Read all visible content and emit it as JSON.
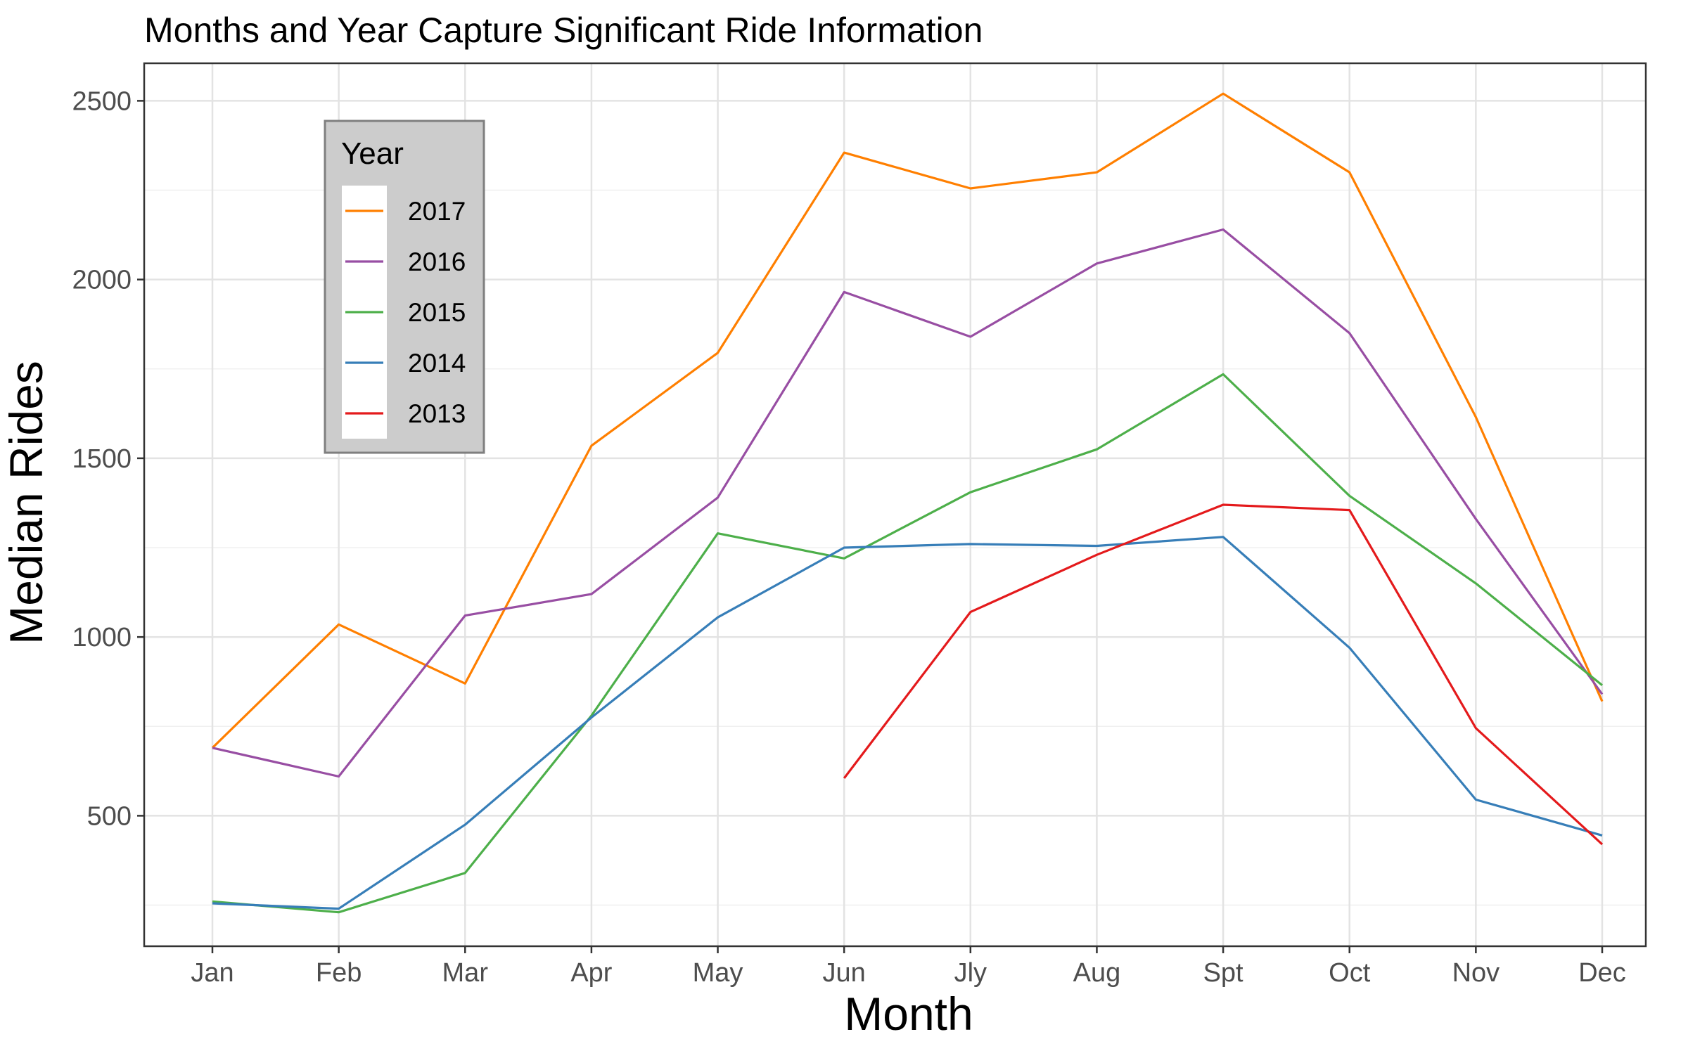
{
  "chart_data": {
    "type": "line",
    "title": "Months and Year Capture Significant Ride Information",
    "xlabel": "Month",
    "ylabel": "Median Rides",
    "categories": [
      "Jan",
      "Feb",
      "Mar",
      "Apr",
      "May",
      "Jun",
      "Jly",
      "Aug",
      "Spt",
      "Oct",
      "Nov",
      "Dec"
    ],
    "ylim": [
      135,
      2605
    ],
    "yticks": [
      500,
      1000,
      1500,
      2000,
      2500
    ],
    "grid": true,
    "legend": {
      "title": "Year",
      "placement": "top-left"
    },
    "series": [
      {
        "name": "2017",
        "color": "#FF7F00",
        "values": [
          690,
          1035,
          870,
          1535,
          1795,
          2355,
          2255,
          2300,
          2520,
          2300,
          1615,
          820
        ]
      },
      {
        "name": "2016",
        "color": "#984EA3",
        "values": [
          690,
          610,
          1060,
          1120,
          1390,
          1965,
          1840,
          2045,
          2140,
          1850,
          1330,
          840
        ]
      },
      {
        "name": "2015",
        "color": "#4DAF4A",
        "values": [
          260,
          230,
          340,
          780,
          1290,
          1220,
          1405,
          1525,
          1735,
          1395,
          1150,
          865
        ]
      },
      {
        "name": "2014",
        "color": "#377EB8",
        "values": [
          255,
          240,
          475,
          775,
          1055,
          1250,
          1260,
          1255,
          1280,
          970,
          545,
          445
        ]
      },
      {
        "name": "2013",
        "color": "#E41A1C",
        "values": [
          null,
          null,
          null,
          null,
          null,
          605,
          1070,
          1230,
          1370,
          1355,
          745,
          420
        ]
      }
    ]
  }
}
